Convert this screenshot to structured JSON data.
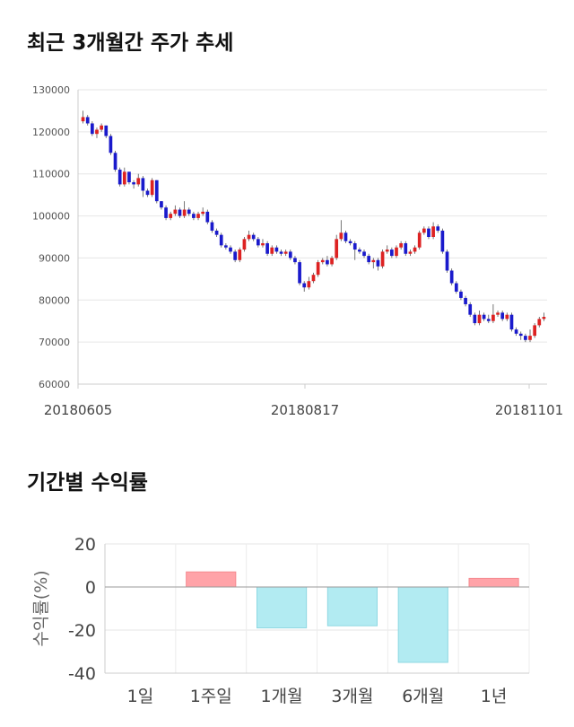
{
  "sections": {
    "price_title": "최근 3개월간 주가 추세",
    "return_title": "기간별 수익률"
  },
  "chart_data": [
    {
      "type": "candlestick",
      "title": "최근 3개월간 주가 추세",
      "ylim": [
        60000,
        130000
      ],
      "yticks": [
        "130000",
        "120000",
        "110000",
        "100000",
        "90000",
        "80000",
        "70000",
        "60000"
      ],
      "xticks": [
        "20180605",
        "20180817",
        "20181101"
      ],
      "grid": true,
      "colors": {
        "up": "#dd2222",
        "down": "#1a1acc"
      },
      "candles": [
        [
          122500,
          123500,
          125000,
          122000
        ],
        [
          123500,
          122000,
          124000,
          121500
        ],
        [
          122000,
          119500,
          122500,
          119000
        ],
        [
          119500,
          120500,
          121000,
          118500
        ],
        [
          120500,
          121500,
          122000,
          120000
        ],
        [
          121500,
          119000,
          121500,
          118500
        ],
        [
          119000,
          115000,
          119500,
          114500
        ],
        [
          115000,
          111000,
          115500,
          110500
        ],
        [
          111000,
          107500,
          111500,
          107000
        ],
        [
          107500,
          110500,
          111500,
          107000
        ],
        [
          110500,
          108000,
          110500,
          107500
        ],
        [
          108000,
          107500,
          108500,
          106500
        ],
        [
          107500,
          109000,
          110000,
          107000
        ],
        [
          109000,
          106000,
          109500,
          104500
        ],
        [
          106000,
          105000,
          106500,
          104500
        ],
        [
          105000,
          108500,
          109000,
          104500
        ],
        [
          108500,
          103500,
          108500,
          103000
        ],
        [
          103500,
          102000,
          103500,
          101500
        ],
        [
          102000,
          99500,
          102500,
          99000
        ],
        [
          99500,
          100500,
          101000,
          99000
        ],
        [
          100500,
          101500,
          102500,
          100000
        ],
        [
          101500,
          100000,
          102000,
          99500
        ],
        [
          100000,
          101500,
          103500,
          99500
        ],
        [
          101500,
          100500,
          102000,
          100000
        ],
        [
          100500,
          99500,
          101000,
          99000
        ],
        [
          99500,
          100500,
          101000,
          99000
        ],
        [
          100500,
          101000,
          102000,
          100000
        ],
        [
          101000,
          98500,
          101500,
          98000
        ],
        [
          98500,
          96500,
          99000,
          96000
        ],
        [
          96500,
          95500,
          97000,
          95000
        ],
        [
          95500,
          93000,
          96000,
          92500
        ],
        [
          93000,
          92500,
          93500,
          92000
        ],
        [
          92500,
          91500,
          93000,
          91000
        ],
        [
          91500,
          89500,
          92000,
          89000
        ],
        [
          89500,
          92000,
          92500,
          89000
        ],
        [
          92000,
          94500,
          95000,
          91500
        ],
        [
          94500,
          95500,
          96500,
          94000
        ],
        [
          95500,
          94500,
          96000,
          94000
        ],
        [
          94500,
          93000,
          95000,
          92500
        ],
        [
          93000,
          93500,
          94500,
          92500
        ],
        [
          93500,
          91000,
          94000,
          90500
        ],
        [
          91000,
          92500,
          93000,
          90500
        ],
        [
          92500,
          91500,
          93000,
          91000
        ],
        [
          91500,
          91000,
          92000,
          90500
        ],
        [
          91000,
          91500,
          92000,
          90500
        ],
        [
          91500,
          90000,
          92000,
          89500
        ],
        [
          90000,
          89000,
          90500,
          88500
        ],
        [
          89000,
          84000,
          89500,
          83500
        ],
        [
          84000,
          83000,
          84500,
          82000
        ],
        [
          83000,
          84500,
          85500,
          82500
        ],
        [
          84500,
          86000,
          86500,
          84000
        ],
        [
          86000,
          89000,
          89500,
          85500
        ],
        [
          89000,
          89500,
          90000,
          88500
        ],
        [
          89500,
          88500,
          90500,
          88000
        ],
        [
          88500,
          90000,
          90500,
          88000
        ],
        [
          90000,
          94500,
          95500,
          89500
        ],
        [
          94500,
          96000,
          99000,
          94000
        ],
        [
          96000,
          94000,
          96500,
          93500
        ],
        [
          94000,
          93500,
          94500,
          93000
        ],
        [
          93500,
          92000,
          94000,
          89500
        ],
        [
          92000,
          91500,
          92500,
          91000
        ],
        [
          91500,
          90500,
          92000,
          90000
        ],
        [
          90500,
          89000,
          91000,
          88500
        ],
        [
          89000,
          89500,
          90000,
          87500
        ],
        [
          89500,
          88000,
          90000,
          87000
        ],
        [
          88000,
          91500,
          92000,
          87500
        ],
        [
          91500,
          92000,
          93000,
          91000
        ],
        [
          92000,
          90500,
          92500,
          90000
        ],
        [
          90500,
          92500,
          93000,
          90000
        ],
        [
          92500,
          93500,
          94000,
          92000
        ],
        [
          93500,
          91000,
          94000,
          90500
        ],
        [
          91000,
          91500,
          92000,
          90500
        ],
        [
          91500,
          92500,
          93000,
          91000
        ],
        [
          92500,
          96000,
          96500,
          92000
        ],
        [
          96000,
          97000,
          97500,
          95500
        ],
        [
          97000,
          95000,
          97500,
          94500
        ],
        [
          95000,
          97500,
          98500,
          94500
        ],
        [
          97500,
          96500,
          98000,
          96000
        ],
        [
          96500,
          91500,
          97000,
          91000
        ],
        [
          91500,
          87000,
          92000,
          86500
        ],
        [
          87000,
          84000,
          87500,
          83500
        ],
        [
          84000,
          82000,
          84500,
          81500
        ],
        [
          82000,
          80500,
          82500,
          80000
        ],
        [
          80500,
          79000,
          81000,
          78500
        ],
        [
          79000,
          76500,
          79500,
          76000
        ],
        [
          76500,
          74500,
          77000,
          74000
        ],
        [
          74500,
          76500,
          77500,
          74000
        ],
        [
          76500,
          75500,
          77000,
          75000
        ],
        [
          75500,
          75000,
          76500,
          74500
        ],
        [
          75000,
          76500,
          79000,
          74500
        ],
        [
          76500,
          77000,
          77500,
          76000
        ],
        [
          77000,
          75500,
          77500,
          75000
        ],
        [
          75500,
          76500,
          77000,
          75000
        ],
        [
          76500,
          73000,
          77000,
          72500
        ],
        [
          73000,
          72000,
          73500,
          71500
        ],
        [
          72000,
          71500,
          72500,
          70500
        ],
        [
          71500,
          70500,
          72000,
          70000
        ],
        [
          70500,
          71500,
          73000,
          70000
        ],
        [
          71500,
          74000,
          74500,
          71000
        ],
        [
          74000,
          75500,
          76000,
          73500
        ],
        [
          75500,
          76000,
          77000,
          75000
        ]
      ]
    },
    {
      "type": "bar",
      "title": "기간별 수익률",
      "ylabel": "수익률(%)",
      "ylim": [
        -40,
        20
      ],
      "yticks": [
        "20",
        "0",
        "-20",
        "-40"
      ],
      "categories": [
        "1일",
        "1주일",
        "1개월",
        "3개월",
        "6개월",
        "1년"
      ],
      "values": [
        0,
        7,
        -19,
        -18,
        -35,
        4
      ],
      "colors": {
        "positive": "#ffa3a8",
        "negative": "#b2ebf2"
      },
      "grid": true
    }
  ]
}
